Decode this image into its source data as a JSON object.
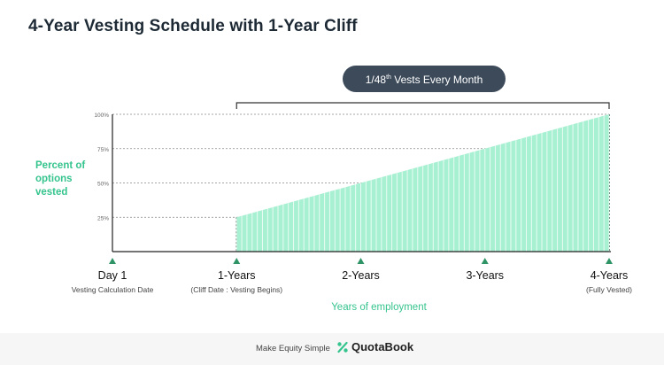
{
  "title": "4-Year Vesting Schedule with 1-Year Cliff",
  "chart_data": {
    "type": "area",
    "title": "4-Year Vesting Schedule with 1-Year Cliff",
    "ylabel_lines": [
      "Percent of",
      "options",
      "vested"
    ],
    "xlabel": "Years of employment",
    "ylim": [
      0,
      100
    ],
    "xlim": [
      0,
      48
    ],
    "y_ticks": [
      {
        "value": 25,
        "label": "25%"
      },
      {
        "value": 50,
        "label": "50%"
      },
      {
        "value": 75,
        "label": "75%"
      },
      {
        "value": 100,
        "label": "100%"
      }
    ],
    "milestones": [
      {
        "month": 0,
        "label": "Day 1",
        "sublabel": "Vesting Calculation Date"
      },
      {
        "month": 12,
        "label": "1-Years",
        "sublabel": "(Cliff Date : Vesting Begins)"
      },
      {
        "month": 24,
        "label": "2-Years",
        "sublabel": ""
      },
      {
        "month": 36,
        "label": "3-Years",
        "sublabel": ""
      },
      {
        "month": 48,
        "label": "4-Years",
        "sublabel": "(Fully Vested)"
      }
    ],
    "series": [
      {
        "name": "Percent vested",
        "cliff_month": 12,
        "monthly_fraction": "1/48",
        "points": [
          [
            12,
            25
          ],
          [
            24,
            50
          ],
          [
            36,
            75
          ],
          [
            48,
            100
          ]
        ]
      }
    ],
    "annotation": {
      "text_pre": "1/48",
      "text_sup": "th",
      "text_post": " Vests Every Month",
      "from_month": 12,
      "to_month": 48
    }
  },
  "colors": {
    "area": "#a8f0d2",
    "area_stripe": "#ffffff",
    "accent": "#35c48e",
    "milestone_marker": "#2e9466",
    "pill_bg": "#3c4a5a",
    "pill_text": "#ffffff",
    "axis": "#222222",
    "grid": "#888888"
  },
  "footer": {
    "tagline": "Make Equity Simple",
    "brand": "QuotaBook",
    "logo_icon": "percent-icon"
  }
}
